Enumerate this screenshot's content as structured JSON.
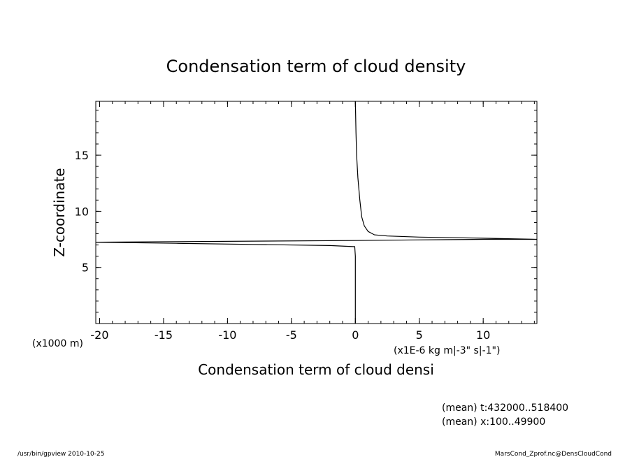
{
  "chart_data": {
    "type": "line",
    "title": "Condensation term of cloud density",
    "xlabel": "Condensation term of cloud densi",
    "ylabel": "Z-coordinate",
    "x_unit": "(x1E-6 kg m|-3\" s|-1\")",
    "y_unit": "(x1000 m)",
    "xlim": [
      -20.3,
      14.2
    ],
    "ylim": [
      0,
      19.8
    ],
    "x_ticks": [
      -20,
      -15,
      -10,
      -5,
      0,
      5,
      10
    ],
    "x_tick_labels": [
      "-20",
      "-15",
      "-10",
      "-5",
      "0",
      "5",
      "10"
    ],
    "y_ticks": [
      5,
      10,
      15
    ],
    "y_tick_labels": [
      "5",
      "10",
      "15"
    ],
    "x_minor_step": 1,
    "y_minor_step": 1,
    "grid": false,
    "series": [
      {
        "x": [
          0,
          0,
          0,
          0,
          -0.05,
          -2,
          -8,
          -14,
          -20.3,
          -7,
          0,
          5,
          10,
          14.2,
          10,
          5,
          2.5,
          1.5,
          1.0,
          0.7,
          0.5,
          0.35,
          0.2,
          0.1,
          0.05,
          0
        ],
        "y": [
          0,
          2,
          4,
          6,
          6.85,
          6.95,
          7.05,
          7.15,
          7.25,
          7.35,
          7.4,
          7.45,
          7.5,
          7.5,
          7.6,
          7.7,
          7.8,
          7.9,
          8.2,
          8.7,
          9.5,
          11,
          13,
          15,
          17,
          19.8
        ]
      }
    ],
    "notes": [
      "(mean) t:432000..518400",
      "(mean) x:100..49900"
    ]
  },
  "footer": {
    "left": "/usr/bin/gpview   2010-10-25",
    "right": "MarsCond_Zprof.nc@DensCloudCond"
  }
}
